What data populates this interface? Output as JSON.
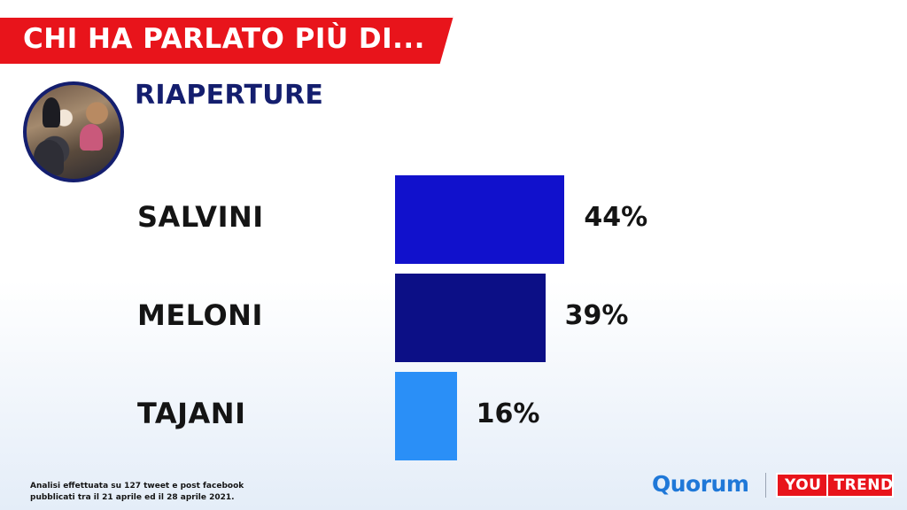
{
  "header": {
    "title": "CHI HA PARLATO PIÙ DI..."
  },
  "topic": {
    "title": "RIAPERTURE"
  },
  "chart_data": {
    "type": "bar",
    "orientation": "horizontal",
    "categories": [
      "SALVINI",
      "MELONI",
      "TAJANI"
    ],
    "values": [
      44,
      39,
      16
    ],
    "value_labels": [
      "44%",
      "39%",
      "16%"
    ],
    "colors": [
      "#1111cc",
      "#0c0f86",
      "#2a8ff7"
    ],
    "xlim": [
      0,
      100
    ],
    "title": "",
    "xlabel": "",
    "ylabel": "",
    "grid": false,
    "legend": "none"
  },
  "footnote": {
    "line1": "Analisi effettuata su 127 tweet e post facebook",
    "line2": "pubblicati tra il 21 aprile ed il 28 aprile 2021."
  },
  "logos": {
    "quorum": "Quorum",
    "youtrend_you": "YOU",
    "youtrend_trend": "TREND"
  }
}
